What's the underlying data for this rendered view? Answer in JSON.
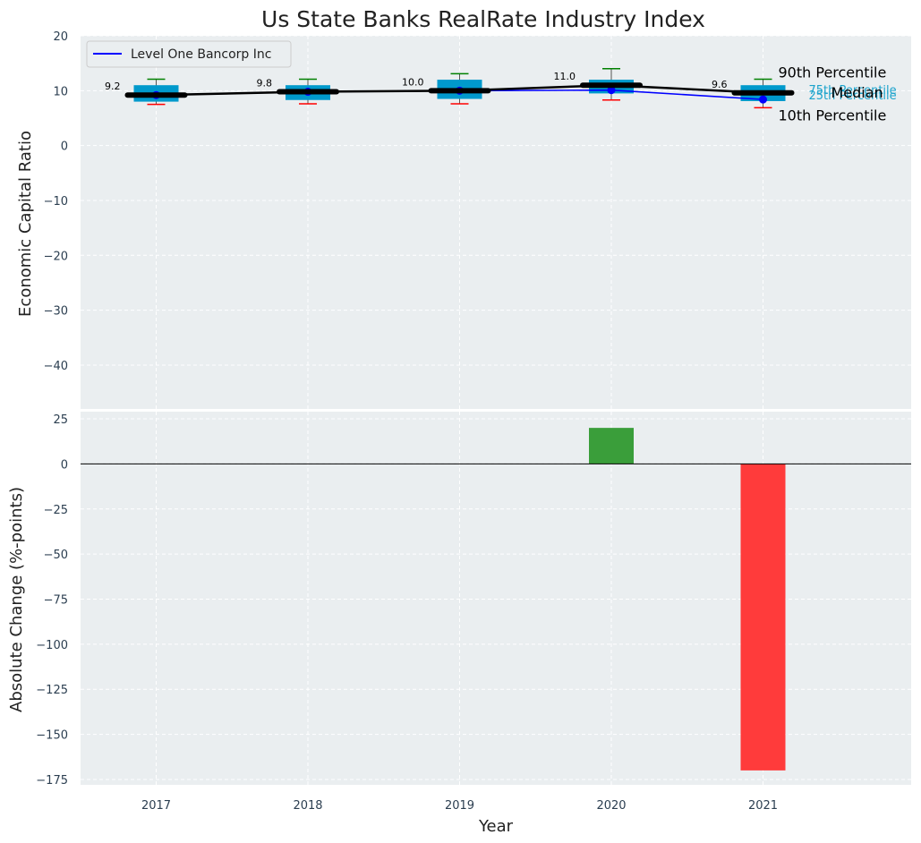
{
  "chart_data": [
    {
      "type": "box",
      "title": "Us State Banks RealRate Industry Index",
      "ylabel": "Economic Capital Ratio",
      "xlabel": "",
      "ylim": [
        -48,
        20
      ],
      "yticks": [
        20,
        10,
        0,
        -10,
        -20,
        -30,
        -40
      ],
      "categories": [
        "2017",
        "2018",
        "2019",
        "2020",
        "2021"
      ],
      "grid": true,
      "legend": {
        "position": "top-left",
        "entries": [
          "Level One Bancorp Inc"
        ]
      },
      "percentiles": {
        "p10": [
          7.5,
          7.6,
          7.6,
          8.3,
          6.9
        ],
        "p25": [
          8.0,
          8.3,
          8.5,
          9.5,
          8.1
        ],
        "median": [
          9.2,
          9.8,
          10.0,
          11.0,
          9.6
        ],
        "p75": [
          11.0,
          11.0,
          12.0,
          12.0,
          11.0
        ],
        "p90": [
          12.1,
          12.1,
          13.1,
          14.0,
          12.1
        ]
      },
      "median_labels": [
        "9.2",
        "9.8",
        "10.0",
        "11.0",
        "9.6"
      ],
      "series": [
        {
          "name": "Level One Bancorp Inc",
          "values": [
            9.2,
            9.8,
            10.0,
            10.1,
            8.4
          ],
          "color": "#0000ff"
        }
      ],
      "annotations": {
        "p90": "90th Percentile",
        "p75": "75th Percentile",
        "median": "Median",
        "p25": "25th Percentile",
        "p10": "10th Percentile"
      },
      "colors": {
        "box": "#0099cc",
        "median_line": "#000000",
        "upper_whisker": "#008000",
        "lower_whisker": "#ff0000",
        "background": "#eaeef0"
      }
    },
    {
      "type": "bar",
      "ylabel": "Absolute Change (%-points)",
      "xlabel": "Year",
      "ylim": [
        -178,
        29
      ],
      "yticks": [
        25,
        0,
        -25,
        -50,
        -75,
        -100,
        -125,
        -150,
        -175
      ],
      "categories": [
        "2017",
        "2018",
        "2019",
        "2020",
        "2021"
      ],
      "values": [
        0,
        0,
        0,
        20,
        -170
      ],
      "grid": true,
      "colors": {
        "positive": "#3a9e3a",
        "negative": "#ff3b3b"
      }
    }
  ]
}
